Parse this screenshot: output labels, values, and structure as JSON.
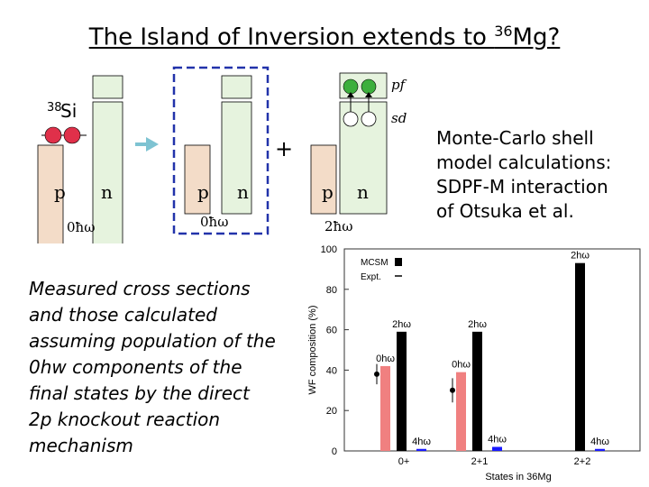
{
  "title": {
    "text": "The Island of Inversion extends to ",
    "sup": "36",
    "tail": "Mg?"
  },
  "diagram": {
    "nucleus_sup": "38",
    "nucleus": "Si",
    "p_label": "p",
    "n_label": "n",
    "hw0": "0ħω",
    "hw2": "2ħω",
    "plus": "+",
    "pf": "pf",
    "sd": "sd",
    "colors": {
      "proton_box": "#f3dcc8",
      "neutron_box": "#e6f3de",
      "dash": "#2233aa",
      "arrow": "#7ec3d2",
      "dot_red": "#e0304a",
      "dot_green": "#3caf3c"
    }
  },
  "description": [
    "Measured cross sections",
    "and those calculated",
    "assuming population of the",
    "0hw components of the",
    "final states by the direct",
    "2p knockout reaction",
    "mechanism"
  ],
  "model_text": [
    "Monte-Carlo shell",
    "model calculations:",
    "SDPF-M interaction",
    "of Otsuka et al."
  ],
  "chart_data": {
    "type": "bar",
    "ylabel": "WF composition (%)",
    "xlabel": "States in 36Mg",
    "ylim": [
      0,
      100
    ],
    "yticks": [
      0,
      20,
      40,
      60,
      80,
      100
    ],
    "legend": {
      "items": [
        "MCSM",
        "Expt."
      ],
      "position": "top-left"
    },
    "categories": [
      "0+",
      "2+1",
      "2+2"
    ],
    "series": [
      {
        "name": "0ħω",
        "values": [
          42,
          39,
          0
        ]
      },
      {
        "name": "2ħω",
        "values": [
          59,
          59,
          93
        ]
      },
      {
        "name": "4ħω",
        "values": [
          1,
          2,
          1
        ]
      }
    ],
    "bar_labels": [
      "0hω",
      "2hω",
      "4hω",
      "0hω",
      "2hω",
      "4hω",
      "2hω",
      "4hω"
    ],
    "expt_points": [
      {
        "category": "0+",
        "value": 38,
        "err": 5
      },
      {
        "category": "2+1",
        "value": 30,
        "err": 6
      }
    ],
    "colors": {
      "0ħω": "#f08080",
      "2ħω": "#000000",
      "4ħω": "#1a1aff"
    }
  }
}
